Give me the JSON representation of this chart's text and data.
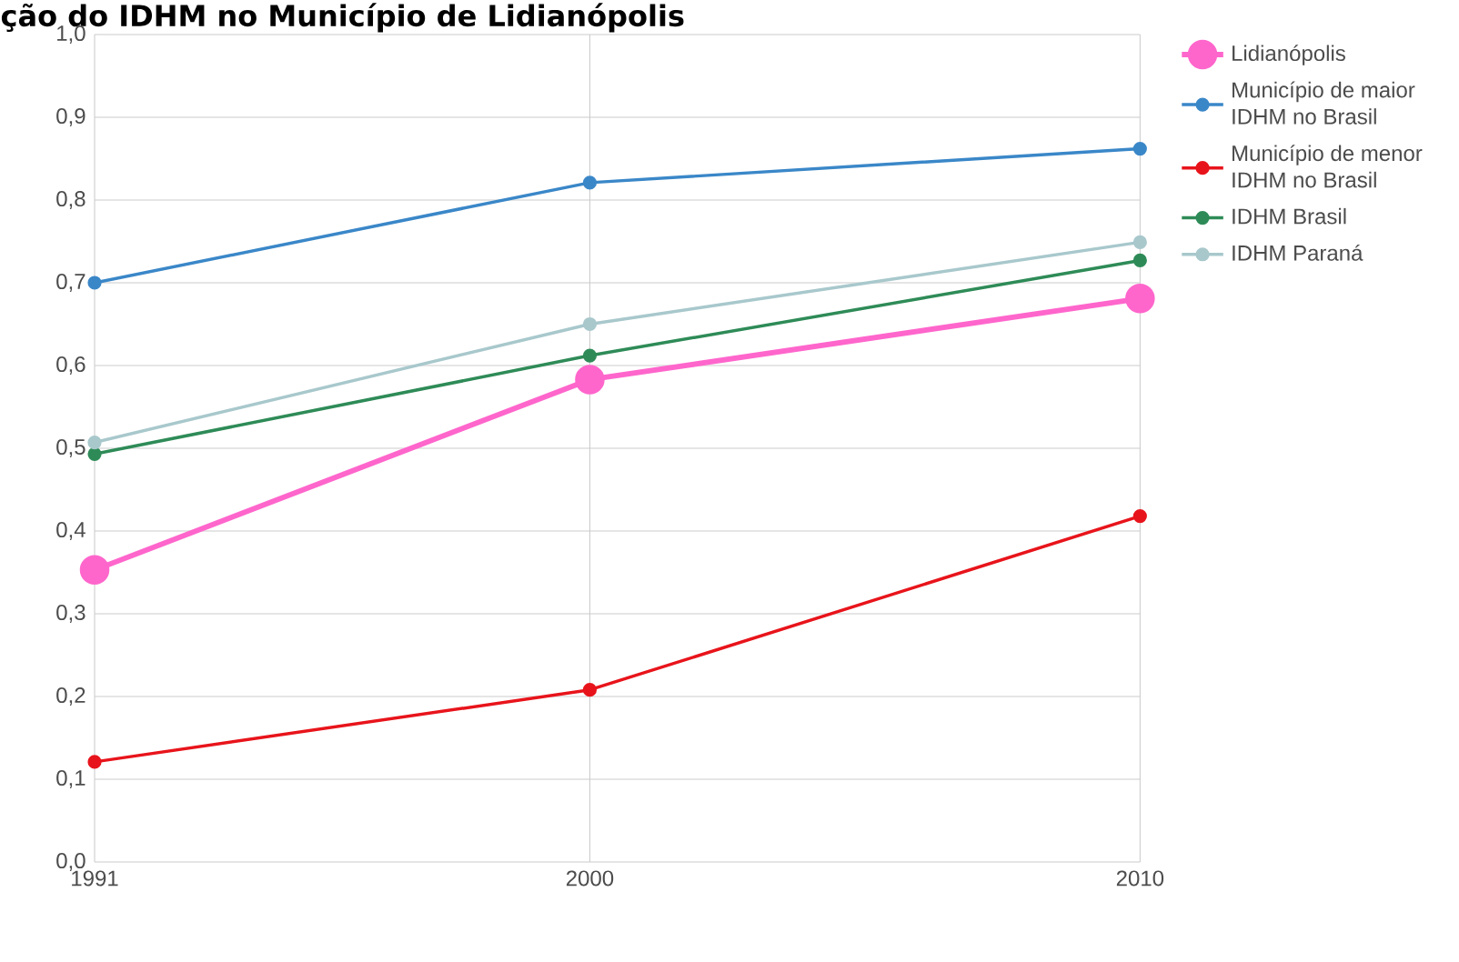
{
  "chart_data": {
    "type": "line",
    "title": "ção do IDHM no Município de Lidianópolis",
    "x": [
      1991,
      2000,
      2010
    ],
    "series": [
      {
        "name": "Lidianópolis",
        "color": "#ff66cc",
        "values": [
          0.353,
          0.583,
          0.681
        ]
      },
      {
        "name": "Município de maior IDHM no Brasil",
        "color": "#3a87c8",
        "values": [
          0.7,
          0.821,
          0.862
        ]
      },
      {
        "name": "Município de menor IDHM no Brasil",
        "color": "#e8141b",
        "values": [
          0.121,
          0.208,
          0.418
        ]
      },
      {
        "name": "IDHM Brasil",
        "color": "#2e8b57",
        "values": [
          0.493,
          0.612,
          0.727
        ]
      },
      {
        "name": "IDHM Paraná",
        "color": "#a8c8cc",
        "values": [
          0.507,
          0.65,
          0.749
        ]
      }
    ],
    "xlim": [
      1991,
      2010
    ],
    "xticks": [
      1991,
      2000,
      2010
    ],
    "ylim": [
      0,
      1
    ],
    "yticks": [
      {
        "value": 0,
        "label": "0,0"
      },
      {
        "value": 0.1,
        "label": "0,1"
      },
      {
        "value": 0.2,
        "label": "0,2"
      },
      {
        "value": 0.3,
        "label": "0,3"
      },
      {
        "value": 0.4,
        "label": "0,4"
      },
      {
        "value": 0.5,
        "label": "0,5"
      },
      {
        "value": 0.6,
        "label": "0,6"
      },
      {
        "value": 0.7,
        "label": "0,7"
      },
      {
        "value": 0.8,
        "label": "0,8"
      },
      {
        "value": 0.9,
        "label": "0,9"
      },
      {
        "value": 1,
        "label": "1,0"
      }
    ],
    "grid": true,
    "legend": "right",
    "marker": "circle",
    "line_style": "solid"
  }
}
